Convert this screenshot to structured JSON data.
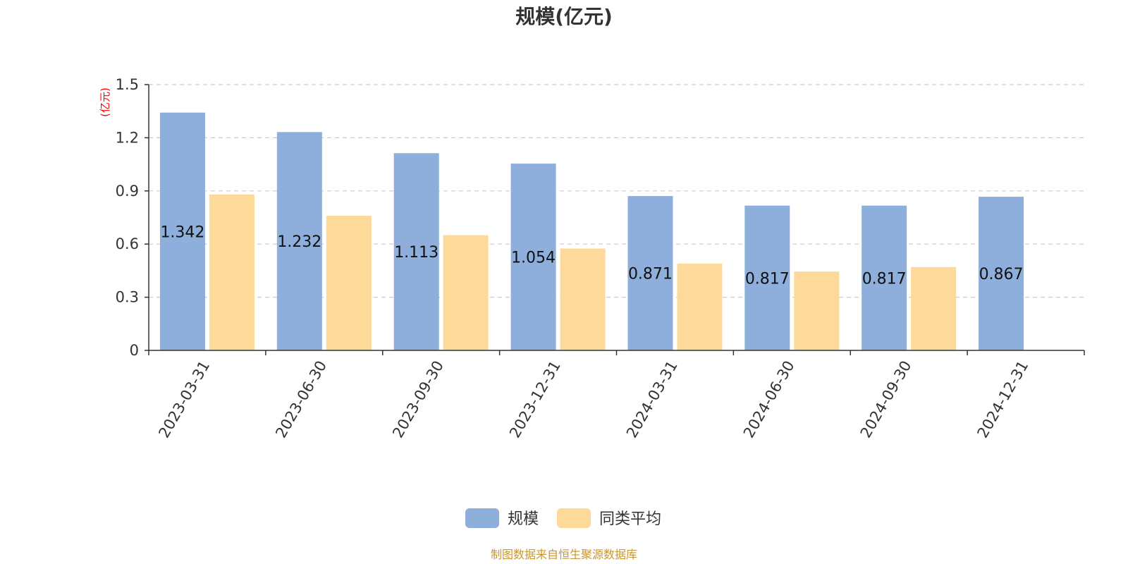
{
  "chart_data": {
    "type": "bar",
    "title": "规模(亿元)",
    "y_unit": "(亿元)",
    "categories": [
      "2023-03-31",
      "2023-06-30",
      "2023-09-30",
      "2023-12-31",
      "2024-03-31",
      "2024-06-30",
      "2024-09-30",
      "2024-12-31"
    ],
    "series": [
      {
        "name": "规模",
        "color": "#8eaedb",
        "values": [
          1.342,
          1.232,
          1.113,
          1.054,
          0.871,
          0.817,
          0.817,
          0.867
        ],
        "labels": [
          "1.342",
          "1.232",
          "1.113",
          "1.054",
          "0.871",
          "0.817",
          "0.817",
          "0.867"
        ]
      },
      {
        "name": "同类平均",
        "color": "#fdd99a",
        "values": [
          0.88,
          0.76,
          0.65,
          0.575,
          0.49,
          0.445,
          0.47,
          null
        ]
      }
    ],
    "ylim": [
      0,
      1.5
    ],
    "yticks": [
      "0",
      "0.3",
      "0.6",
      "0.9",
      "1.2",
      "1.5"
    ],
    "grid": true,
    "legend_position": "bottom-center"
  },
  "source_note": "制图数据来自恒生聚源数据库"
}
